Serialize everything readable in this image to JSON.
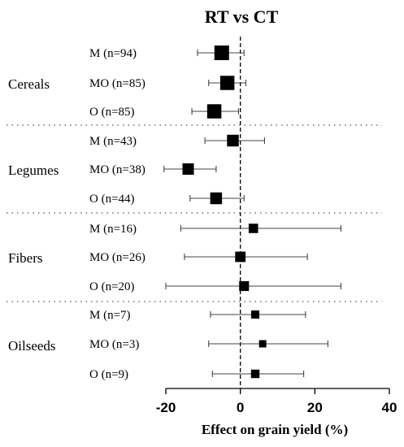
{
  "chart_data": {
    "type": "forest",
    "title": "RT vs CT",
    "xlabel": "Effect on grain yield (%)",
    "xlim": [
      -20,
      40
    ],
    "xticks": [
      -20,
      0,
      20,
      40
    ],
    "reference_line": 0,
    "groups": [
      {
        "name": "Cereals",
        "rows": [
          {
            "label": "M (n=94)",
            "est": -5,
            "lo": -11.5,
            "hi": 1
          },
          {
            "label": "MO (n=85)",
            "est": -3.5,
            "lo": -8.5,
            "hi": 1.5
          },
          {
            "label": "O (n=85)",
            "est": -7,
            "lo": -13,
            "hi": -0.5
          }
        ]
      },
      {
        "name": "Legumes",
        "rows": [
          {
            "label": "M (n=43)",
            "est": -2,
            "lo": -9.5,
            "hi": 6.5
          },
          {
            "label": "MO (n=38)",
            "est": -14,
            "lo": -20.5,
            "hi": -6.5
          },
          {
            "label": "O (n=44)",
            "est": -6.5,
            "lo": -13.5,
            "hi": 1
          }
        ]
      },
      {
        "name": "Fibers",
        "rows": [
          {
            "label": "M (n=16)",
            "est": 3.5,
            "lo": -16,
            "hi": 27
          },
          {
            "label": "MO (n=26)",
            "est": 0,
            "lo": -15,
            "hi": 18
          },
          {
            "label": "O (n=20)",
            "est": 1,
            "lo": -20,
            "hi": 27
          }
        ]
      },
      {
        "name": "Oilseeds",
        "rows": [
          {
            "label": "M (n=7)",
            "est": 4,
            "lo": -8,
            "hi": 17.5
          },
          {
            "label": "MO (n=3)",
            "est": 6,
            "lo": -8.5,
            "hi": 23.5
          },
          {
            "label": "O (n=9)",
            "est": 4,
            "lo": -7.5,
            "hi": 17
          }
        ]
      }
    ]
  }
}
